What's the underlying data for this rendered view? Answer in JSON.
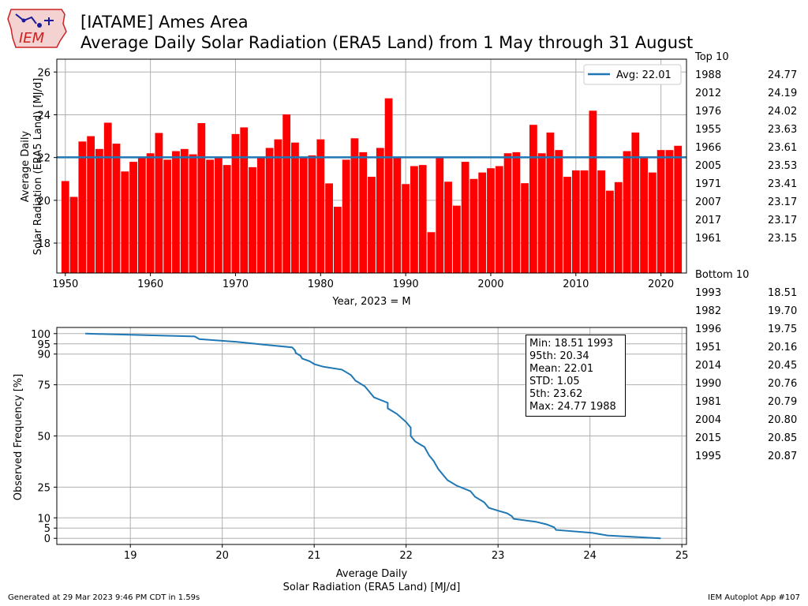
{
  "header": {
    "logo_text": "IEM",
    "title_line1": "[IATAME] Ames Area",
    "title_line2": "Average Daily Solar Radiation (ERA5 Land) from 1 May through 31 August"
  },
  "colors": {
    "bar": "#ff0000",
    "avg_line": "#1f77b4",
    "cdf_line": "#1f77b4",
    "grid": "#b0b0b0"
  },
  "chart_data": [
    {
      "type": "bar",
      "xlabel": "Year, 2023 = M",
      "ylabel": "Average Daily\nSolar Radiation (ERA5 Land) [MJ/d]",
      "xlim": [
        1949,
        2023
      ],
      "ylim": [
        16.6,
        26.6
      ],
      "xticks": [
        1950,
        1960,
        1970,
        1980,
        1990,
        2000,
        2010,
        2020
      ],
      "yticks": [
        18,
        20,
        22,
        24,
        26
      ],
      "grid": true,
      "legend": {
        "position": "top-right",
        "entries": [
          "Avg: 22.01"
        ]
      },
      "average": 22.01,
      "years": [
        1950,
        1951,
        1952,
        1953,
        1954,
        1955,
        1956,
        1957,
        1958,
        1959,
        1960,
        1961,
        1962,
        1963,
        1964,
        1965,
        1966,
        1967,
        1968,
        1969,
        1970,
        1971,
        1972,
        1973,
        1974,
        1975,
        1976,
        1977,
        1978,
        1979,
        1980,
        1981,
        1982,
        1983,
        1984,
        1985,
        1986,
        1987,
        1988,
        1989,
        1990,
        1991,
        1992,
        1993,
        1994,
        1995,
        1996,
        1997,
        1998,
        1999,
        2000,
        2001,
        2002,
        2003,
        2004,
        2005,
        2006,
        2007,
        2008,
        2009,
        2010,
        2011,
        2012,
        2013,
        2014,
        2015,
        2016,
        2017,
        2018,
        2019,
        2020,
        2021,
        2022
      ],
      "values": [
        20.9,
        20.16,
        22.75,
        23.0,
        22.4,
        23.63,
        22.65,
        21.35,
        21.8,
        22.0,
        22.2,
        23.15,
        21.9,
        22.3,
        22.4,
        22.15,
        23.61,
        21.9,
        22.0,
        21.65,
        23.1,
        23.41,
        21.55,
        22.0,
        22.45,
        22.85,
        24.02,
        22.7,
        22.0,
        22.1,
        22.85,
        20.79,
        19.7,
        21.9,
        22.9,
        22.25,
        21.1,
        22.45,
        24.77,
        22.0,
        20.76,
        21.6,
        21.65,
        18.51,
        22.0,
        20.87,
        19.75,
        21.8,
        21.0,
        21.3,
        21.5,
        21.6,
        22.2,
        22.25,
        20.8,
        23.53,
        22.2,
        23.17,
        22.35,
        21.1,
        21.4,
        21.4,
        24.19,
        21.4,
        20.45,
        20.85,
        22.3,
        23.17,
        22.0,
        21.3,
        22.35,
        22.35,
        22.55
      ]
    },
    {
      "type": "line",
      "xlabel": "Average Daily\nSolar Radiation (ERA5 Land) [MJ/d]",
      "ylabel": "Observed Frequency [%]",
      "xlim": [
        18.2,
        25.05
      ],
      "ylim": [
        -3,
        103
      ],
      "xticks": [
        19,
        20,
        21,
        22,
        23,
        24,
        25
      ],
      "yticks": [
        0,
        5,
        10,
        25,
        50,
        75,
        90,
        95,
        100
      ],
      "grid": true,
      "x": [
        18.51,
        19.7,
        19.75,
        20.16,
        20.45,
        20.76,
        20.79,
        20.8,
        20.85,
        20.87,
        20.95,
        21.0,
        21.1,
        21.3,
        21.35,
        21.4,
        21.45,
        21.55,
        21.6,
        21.65,
        21.8,
        21.8,
        21.9,
        22.0,
        22.05,
        22.05,
        22.1,
        22.2,
        22.25,
        22.3,
        22.35,
        22.4,
        22.45,
        22.55,
        22.7,
        22.75,
        22.85,
        22.9,
        23.0,
        23.1,
        23.15,
        23.17,
        23.41,
        23.53,
        23.61,
        23.63,
        24.02,
        24.19,
        24.77
      ],
      "y": [
        100,
        98.6,
        97.3,
        96.0,
        94.6,
        93.3,
        91.9,
        90.5,
        89.2,
        87.8,
        86.5,
        85.1,
        83.8,
        82.4,
        81.1,
        79.7,
        77.0,
        74.3,
        71.6,
        68.9,
        66.2,
        63.5,
        60.8,
        56.8,
        54.1,
        50.0,
        47.3,
        44.6,
        40.5,
        37.8,
        33.8,
        31.1,
        28.4,
        25.7,
        23.0,
        20.3,
        17.6,
        14.9,
        13.5,
        12.2,
        10.8,
        9.5,
        8.1,
        6.8,
        5.4,
        4.1,
        2.7,
        1.4,
        0
      ]
    }
  ],
  "stats": {
    "min": "Min: 18.51 1993",
    "p95": "95th: 20.34",
    "mean": "Mean: 22.01",
    "std": "STD: 1.05",
    "p5": "5th: 23.62",
    "max": "Max: 24.77 1988"
  },
  "top10": {
    "heading": "Top 10",
    "rows": [
      {
        "year": "1988",
        "value": "24.77"
      },
      {
        "year": "2012",
        "value": "24.19"
      },
      {
        "year": "1976",
        "value": "24.02"
      },
      {
        "year": "1955",
        "value": "23.63"
      },
      {
        "year": "1966",
        "value": "23.61"
      },
      {
        "year": "2005",
        "value": "23.53"
      },
      {
        "year": "1971",
        "value": "23.41"
      },
      {
        "year": "2007",
        "value": "23.17"
      },
      {
        "year": "2017",
        "value": "23.17"
      },
      {
        "year": "1961",
        "value": "23.15"
      }
    ]
  },
  "bottom10": {
    "heading": "Bottom 10",
    "rows": [
      {
        "year": "1993",
        "value": "18.51"
      },
      {
        "year": "1982",
        "value": "19.70"
      },
      {
        "year": "1996",
        "value": "19.75"
      },
      {
        "year": "1951",
        "value": "20.16"
      },
      {
        "year": "2014",
        "value": "20.45"
      },
      {
        "year": "1990",
        "value": "20.76"
      },
      {
        "year": "1981",
        "value": "20.79"
      },
      {
        "year": "2004",
        "value": "20.80"
      },
      {
        "year": "2015",
        "value": "20.85"
      },
      {
        "year": "1995",
        "value": "20.87"
      }
    ]
  },
  "footer": {
    "left": "Generated at 29 Mar 2023 9:46 PM CDT in 1.59s",
    "right": "IEM Autoplot App #107"
  }
}
